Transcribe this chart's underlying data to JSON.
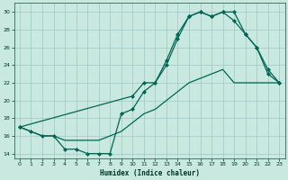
{
  "xlabel": "Humidex (Indice chaleur)",
  "bg_color": "#c8e8e0",
  "grid_color": "#a0c8c0",
  "line_color": "#006655",
  "line1_x": [
    0,
    1,
    2,
    3,
    4,
    5,
    6,
    7,
    8,
    9,
    10,
    11,
    12,
    13,
    14,
    15,
    16,
    17,
    18,
    19,
    20,
    21,
    22,
    23
  ],
  "line1_y": [
    17,
    16.5,
    16,
    16,
    15.5,
    15.5,
    15.5,
    15.5,
    16,
    16.5,
    17.5,
    18.5,
    19,
    20,
    21,
    22,
    22.5,
    23,
    23.5,
    22,
    22,
    22,
    22,
    22
  ],
  "line2_x": [
    0,
    10,
    11,
    12,
    13,
    14,
    15,
    16,
    17,
    18,
    19,
    20,
    21,
    22,
    23
  ],
  "line2_y": [
    17,
    20.5,
    22,
    22,
    24.5,
    27.5,
    29.5,
    30,
    29.5,
    30,
    29,
    27.5,
    26,
    23.5,
    22
  ],
  "line3_x": [
    0,
    1,
    2,
    3,
    4,
    5,
    6,
    7,
    8,
    9,
    10,
    11,
    12,
    13,
    14,
    15,
    16,
    17,
    18,
    19,
    20,
    21,
    22,
    23
  ],
  "line3_y": [
    17,
    16.5,
    16,
    16,
    14.5,
    14.5,
    14,
    14,
    14,
    18.5,
    19,
    21,
    22,
    24,
    27,
    29.5,
    30,
    29.5,
    30,
    30,
    27.5,
    26,
    23,
    22
  ],
  "ylim": [
    13.5,
    31
  ],
  "xlim": [
    -0.5,
    23.5
  ],
  "yticks": [
    14,
    16,
    18,
    20,
    22,
    24,
    26,
    28,
    30
  ],
  "xticks": [
    0,
    1,
    2,
    3,
    4,
    5,
    6,
    7,
    8,
    9,
    10,
    11,
    12,
    13,
    14,
    15,
    16,
    17,
    18,
    19,
    20,
    21,
    22,
    23
  ]
}
